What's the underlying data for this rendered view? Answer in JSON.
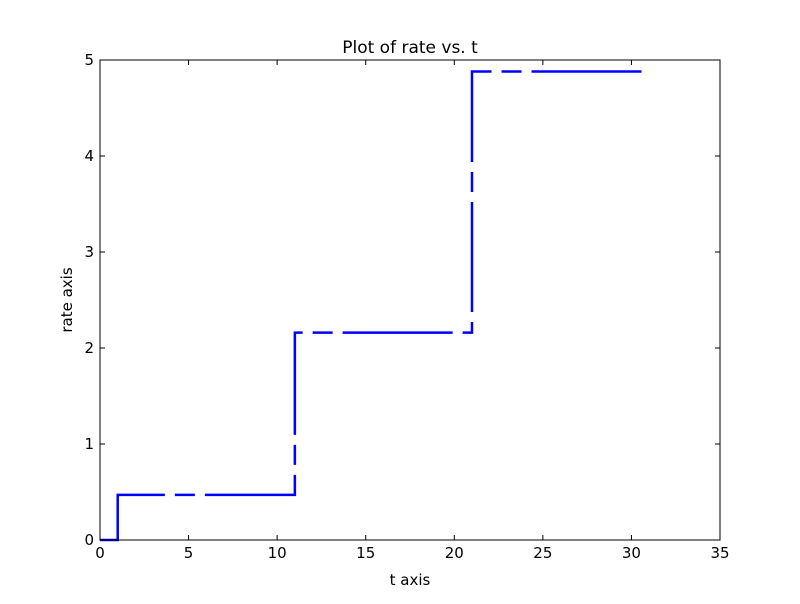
{
  "chart_data": {
    "type": "line",
    "title": "Plot of rate vs. t",
    "xlabel": "t axis",
    "ylabel": "rate axis",
    "xlim": [
      0,
      35
    ],
    "ylim": [
      0,
      5
    ],
    "xticks": [
      0,
      5,
      10,
      15,
      20,
      25,
      30,
      35
    ],
    "yticks": [
      0,
      1,
      2,
      3,
      4,
      5
    ],
    "grid": false,
    "line_style": "dash-dot",
    "line_color": "#0000ff",
    "series": [
      {
        "x": [
          0,
          1,
          1,
          11,
          11,
          21,
          21,
          31
        ],
        "y": [
          0,
          0,
          0.47,
          0.47,
          2.16,
          2.16,
          4.88,
          4.88
        ]
      }
    ]
  }
}
